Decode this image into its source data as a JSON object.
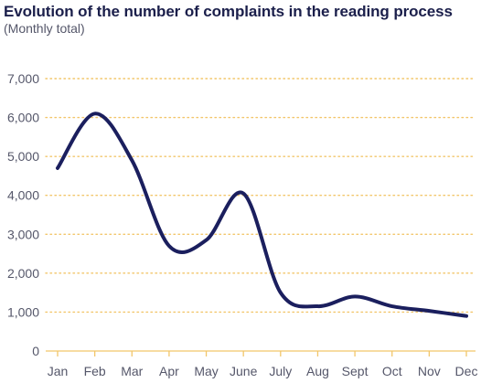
{
  "chart_data": {
    "type": "line",
    "title": "Evolution of the number of complaints in the reading process",
    "subtitle": "(Monthly total)",
    "xlabel": "",
    "ylabel": "",
    "categories": [
      "Jan",
      "Feb",
      "Mar",
      "Apr",
      "May",
      "June",
      "July",
      "Aug",
      "Sept",
      "Oct",
      "Nov",
      "Dec"
    ],
    "series": [
      {
        "values": [
          4700,
          6100,
          4900,
          2700,
          2850,
          4050,
          1500,
          1150,
          1400,
          1150,
          1030,
          900
        ]
      }
    ],
    "ylim": [
      0,
      7000
    ],
    "yticks": [
      0,
      1000,
      2000,
      3000,
      4000,
      5000,
      6000,
      7000
    ],
    "ytick_labels": [
      "0",
      "1,000",
      "2,000",
      "3,000",
      "4,000",
      "5,000",
      "6,000",
      "7,000"
    ],
    "grid": true,
    "legend": "none",
    "colors": {
      "line": "#1b1f5e",
      "grid": "#f2c66a",
      "axis": "#f2c66a",
      "text": "#55576a",
      "title": "#1b1f4b"
    }
  }
}
